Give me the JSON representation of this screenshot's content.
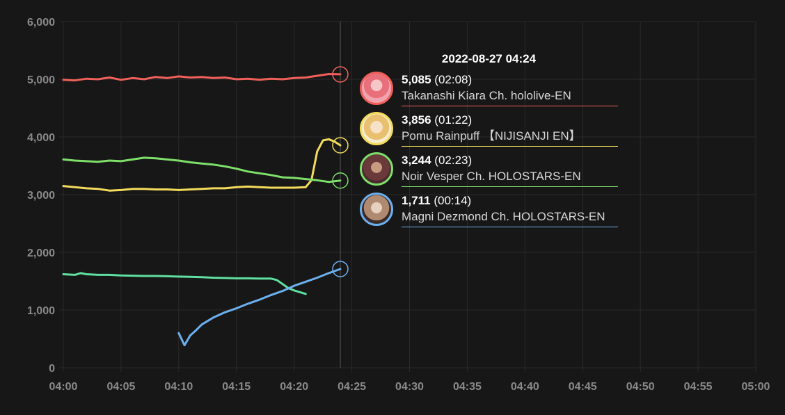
{
  "chart_data": {
    "type": "line",
    "title": "",
    "xlabel": "",
    "ylabel": "",
    "x_ticks": [
      "04:00",
      "04:05",
      "04:10",
      "04:15",
      "04:20",
      "04:25",
      "04:30",
      "04:35",
      "04:40",
      "04:45",
      "04:50",
      "04:55",
      "05:00"
    ],
    "y_ticks": [
      "0",
      "1,000",
      "2,000",
      "3,000",
      "4,000",
      "5,000",
      "6,000"
    ],
    "xlim_minutes": [
      0,
      60
    ],
    "ylim": [
      0,
      6000
    ],
    "grid": true,
    "hover_minute": 24,
    "series": [
      {
        "name": "Takanashi Kiara Ch. hololive-EN",
        "color": "#f0605a",
        "points": [
          [
            0,
            4990
          ],
          [
            1,
            4980
          ],
          [
            2,
            5010
          ],
          [
            3,
            5000
          ],
          [
            4,
            5030
          ],
          [
            5,
            4990
          ],
          [
            6,
            5020
          ],
          [
            7,
            5000
          ],
          [
            8,
            5040
          ],
          [
            9,
            5020
          ],
          [
            10,
            5050
          ],
          [
            11,
            5030
          ],
          [
            12,
            5040
          ],
          [
            13,
            5020
          ],
          [
            14,
            5030
          ],
          [
            15,
            5000
          ],
          [
            16,
            5010
          ],
          [
            17,
            4990
          ],
          [
            18,
            5010
          ],
          [
            19,
            5000
          ],
          [
            20,
            5020
          ],
          [
            21,
            5030
          ],
          [
            22,
            5060
          ],
          [
            23,
            5090
          ],
          [
            24,
            5085
          ]
        ]
      },
      {
        "name": "Pomu Rainpuff 【NIJISANJI EN】",
        "color": "#f3dc5c",
        "points": [
          [
            0,
            3150
          ],
          [
            1,
            3130
          ],
          [
            2,
            3110
          ],
          [
            3,
            3100
          ],
          [
            4,
            3070
          ],
          [
            5,
            3080
          ],
          [
            6,
            3100
          ],
          [
            7,
            3100
          ],
          [
            8,
            3090
          ],
          [
            9,
            3090
          ],
          [
            10,
            3080
          ],
          [
            11,
            3090
          ],
          [
            12,
            3100
          ],
          [
            13,
            3110
          ],
          [
            14,
            3110
          ],
          [
            15,
            3130
          ],
          [
            16,
            3140
          ],
          [
            17,
            3130
          ],
          [
            18,
            3120
          ],
          [
            19,
            3120
          ],
          [
            20,
            3120
          ],
          [
            21,
            3130
          ],
          [
            21.5,
            3250
          ],
          [
            22,
            3750
          ],
          [
            22.5,
            3940
          ],
          [
            23,
            3960
          ],
          [
            23.5,
            3920
          ],
          [
            24,
            3856
          ]
        ]
      },
      {
        "name": "Noir Vesper Ch. HOLOSTARS-EN",
        "color": "#7ee06a",
        "points": [
          [
            0,
            3610
          ],
          [
            1,
            3590
          ],
          [
            2,
            3580
          ],
          [
            3,
            3570
          ],
          [
            4,
            3590
          ],
          [
            5,
            3580
          ],
          [
            6,
            3610
          ],
          [
            7,
            3640
          ],
          [
            8,
            3630
          ],
          [
            9,
            3610
          ],
          [
            10,
            3590
          ],
          [
            11,
            3560
          ],
          [
            12,
            3540
          ],
          [
            13,
            3520
          ],
          [
            14,
            3490
          ],
          [
            15,
            3450
          ],
          [
            16,
            3400
          ],
          [
            17,
            3370
          ],
          [
            18,
            3340
          ],
          [
            19,
            3300
          ],
          [
            20,
            3290
          ],
          [
            21,
            3270
          ],
          [
            22,
            3250
          ],
          [
            23,
            3220
          ],
          [
            24,
            3244
          ]
        ]
      },
      {
        "name": "",
        "color": "#5fe0a0",
        "points": [
          [
            0,
            1620
          ],
          [
            1,
            1610
          ],
          [
            1.5,
            1640
          ],
          [
            2,
            1620
          ],
          [
            3,
            1610
          ],
          [
            4,
            1610
          ],
          [
            5,
            1600
          ],
          [
            6,
            1595
          ],
          [
            7,
            1590
          ],
          [
            8,
            1590
          ],
          [
            9,
            1585
          ],
          [
            10,
            1580
          ],
          [
            11,
            1575
          ],
          [
            12,
            1570
          ],
          [
            13,
            1560
          ],
          [
            14,
            1555
          ],
          [
            15,
            1550
          ],
          [
            16,
            1550
          ],
          [
            17,
            1545
          ],
          [
            18,
            1545
          ],
          [
            18.5,
            1520
          ],
          [
            19,
            1450
          ],
          [
            19.5,
            1380
          ],
          [
            20,
            1340
          ],
          [
            21,
            1280
          ]
        ]
      },
      {
        "name": "Magni Dezmond Ch. HOLOSTARS-EN",
        "color": "#6cb0ef",
        "points": [
          [
            10,
            600
          ],
          [
            10.5,
            390
          ],
          [
            11,
            560
          ],
          [
            11.5,
            650
          ],
          [
            12,
            750
          ],
          [
            13,
            870
          ],
          [
            14,
            960
          ],
          [
            15,
            1030
          ],
          [
            16,
            1110
          ],
          [
            17,
            1180
          ],
          [
            18,
            1260
          ],
          [
            19,
            1330
          ],
          [
            20,
            1420
          ],
          [
            21,
            1490
          ],
          [
            22,
            1560
          ],
          [
            23,
            1640
          ],
          [
            24,
            1711
          ]
        ]
      }
    ]
  },
  "tooltip": {
    "time": "2022-08-27 04:24",
    "entries": [
      {
        "value": "5,085",
        "duration": "(02:08)",
        "name": "Takanashi Kiara Ch. hololive-EN",
        "color": "#f0605a",
        "avatar": "avatar-kiara"
      },
      {
        "value": "3,856",
        "duration": "(01:22)",
        "name": "Pomu Rainpuff 【NIJISANJI EN】",
        "color": "#f3dc5c",
        "avatar": "avatar-pomu"
      },
      {
        "value": "3,244",
        "duration": "(02:23)",
        "name": "Noir Vesper Ch. HOLOSTARS-EN",
        "color": "#7ee06a",
        "avatar": "avatar-noir"
      },
      {
        "value": "1,711",
        "duration": "(00:14)",
        "name": "Magni Dezmond Ch. HOLOSTARS-EN",
        "color": "#6cb0ef",
        "avatar": "avatar-magni"
      }
    ]
  }
}
